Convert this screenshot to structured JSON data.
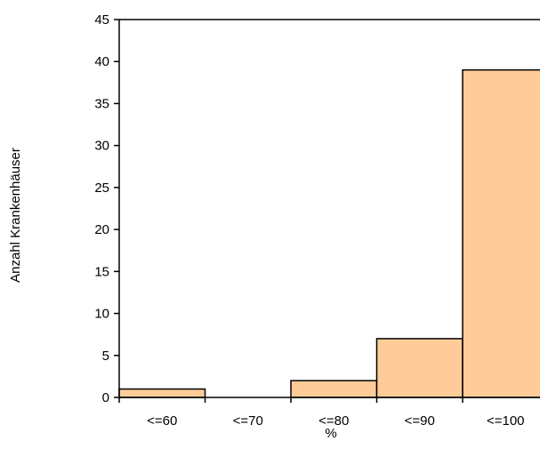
{
  "chart_data": {
    "type": "bar",
    "title": "",
    "xlabel": "%",
    "ylabel": "Anzahl Krankenhäuser",
    "categories": [
      "<=60",
      "<=70",
      "<=80",
      "<=90",
      "<=100"
    ],
    "values": [
      1,
      0,
      2,
      7,
      39
    ],
    "ylim": [
      0,
      45
    ],
    "yticks": [
      0,
      5,
      10,
      15,
      20,
      25,
      30,
      35,
      40,
      45
    ],
    "grid": false,
    "legend": "none",
    "bar_color": "#FFCC99",
    "bar_edge_color": "#000000"
  }
}
